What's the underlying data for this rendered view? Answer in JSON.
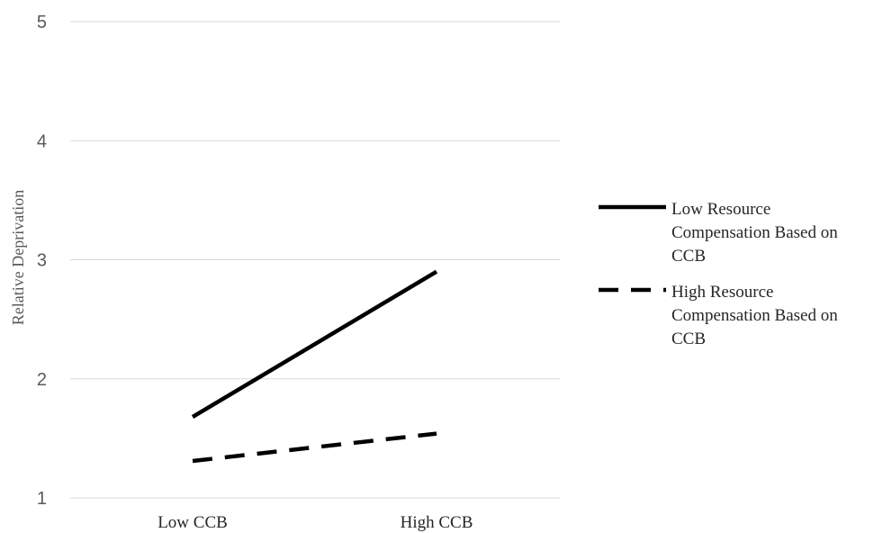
{
  "chart_data": {
    "type": "line",
    "categories": [
      "Low CCB",
      "High CCB"
    ],
    "series": [
      {
        "name": "Low Resource Compensation Based on CCB",
        "name_lines": [
          "Low Resource",
          "Compensation Based on",
          "CCB"
        ],
        "values": [
          1.68,
          2.9
        ],
        "color": "#000000",
        "dash": "solid"
      },
      {
        "name": "High Resource Compensation Based on CCB",
        "name_lines": [
          "High Resource",
          "Compensation Based on",
          "CCB"
        ],
        "values": [
          1.31,
          1.54
        ],
        "color": "#000000",
        "dash": "dashed"
      }
    ],
    "ylabel": "Relative Deprivation",
    "xlabel": "",
    "ylim": [
      1,
      5
    ],
    "yticks": [
      "1",
      "2",
      "3",
      "4",
      "5"
    ],
    "grid": true,
    "legend_position": "right"
  }
}
